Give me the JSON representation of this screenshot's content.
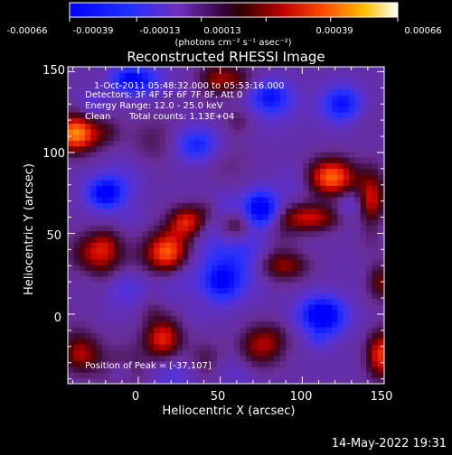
{
  "chart_data": {
    "type": "heatmap",
    "title": "Reconstructed RHESSI Image",
    "xlabel": "Heliocentric X (arcsec)",
    "ylabel": "Heliocentric Y (arcsec)",
    "xlim": [
      -43,
      150
    ],
    "ylim": [
      -43,
      153
    ],
    "x_ticks": [
      0,
      50,
      100,
      150
    ],
    "x_tick_labels": [
      "0",
      "50",
      "100",
      "150"
    ],
    "y_ticks": [
      0,
      50,
      100,
      150
    ],
    "y_tick_labels": [
      "0",
      "50",
      "100",
      "150"
    ],
    "colorbar": {
      "range": [
        -0.00066,
        0.00066
      ],
      "ticks": [
        -0.00066,
        -0.00039,
        -0.00013,
        0.00013,
        0.00039,
        0.00066
      ],
      "tick_labels": [
        "-0.00066",
        "-0.00039",
        "-0.00013",
        "0.00013",
        "0.00039",
        "0.00066"
      ],
      "units_line": "(photons cm⁻² s⁻¹ asec⁻²)"
    },
    "annotations": {
      "line1": "1-Oct-2011 05:48:32.000 to 05:53:16.000",
      "line2": "Detectors: 3F 4F 5F 6F 7F 8F, Att 0",
      "line3": "Energy Range: 12.0 - 25.0 keV",
      "line4_left": "Clean",
      "line4_right": "Total counts: 1.13E+04",
      "peak": "Position of Peak = [-37,107]"
    },
    "bright_sources": [
      {
        "x": -38,
        "y": 112,
        "intensity": 1.0,
        "sx": 9,
        "sy": 8
      },
      {
        "x": 18,
        "y": 38,
        "intensity": 0.95,
        "sx": 9,
        "sy": 9
      },
      {
        "x": 30,
        "y": 57,
        "intensity": 0.75,
        "sx": 8,
        "sy": 7
      },
      {
        "x": 118,
        "y": 85,
        "intensity": 0.9,
        "sx": 10,
        "sy": 8
      },
      {
        "x": 105,
        "y": 60,
        "intensity": 0.6,
        "sx": 12,
        "sy": 6
      },
      {
        "x": 142,
        "y": 68,
        "intensity": 0.7,
        "sx": 6,
        "sy": 14
      },
      {
        "x": 60,
        "y": 55,
        "intensity": 0.45,
        "sx": 8,
        "sy": 7
      },
      {
        "x": -25,
        "y": 35,
        "intensity": 0.55,
        "sx": 10,
        "sy": 10
      },
      {
        "x": 15,
        "y": -15,
        "intensity": 0.7,
        "sx": 8,
        "sy": 9
      },
      {
        "x": 75,
        "y": -20,
        "intensity": 0.55,
        "sx": 9,
        "sy": 9
      },
      {
        "x": 148,
        "y": -25,
        "intensity": 0.75,
        "sx": 6,
        "sy": 10
      },
      {
        "x": 148,
        "y": 20,
        "intensity": 0.45,
        "sx": 6,
        "sy": 8
      },
      {
        "x": -35,
        "y": -25,
        "intensity": 0.5,
        "sx": 8,
        "sy": 8
      },
      {
        "x": 90,
        "y": 30,
        "intensity": 0.4,
        "sx": 10,
        "sy": 6
      },
      {
        "x": 55,
        "y": 145,
        "intensity": 0.35,
        "sx": 10,
        "sy": 6
      }
    ],
    "dark_regions": [
      {
        "x": 75,
        "y": 65,
        "intensity": -0.9,
        "sx": 8,
        "sy": 8
      },
      {
        "x": -20,
        "y": 75,
        "intensity": -0.8,
        "sx": 8,
        "sy": 7
      },
      {
        "x": 112,
        "y": 0,
        "intensity": -0.85,
        "sx": 10,
        "sy": 8
      },
      {
        "x": 50,
        "y": 20,
        "intensity": -0.6,
        "sx": 8,
        "sy": 8
      },
      {
        "x": -5,
        "y": 145,
        "intensity": -0.7,
        "sx": 8,
        "sy": 6
      },
      {
        "x": 125,
        "y": 130,
        "intensity": -0.7,
        "sx": 9,
        "sy": 8
      },
      {
        "x": 35,
        "y": 105,
        "intensity": -0.5,
        "sx": 9,
        "sy": 7
      },
      {
        "x": 80,
        "y": 135,
        "intensity": -0.55,
        "sx": 9,
        "sy": 7
      }
    ]
  },
  "footer": {
    "timestamp": "14-May-2022 19:31"
  }
}
